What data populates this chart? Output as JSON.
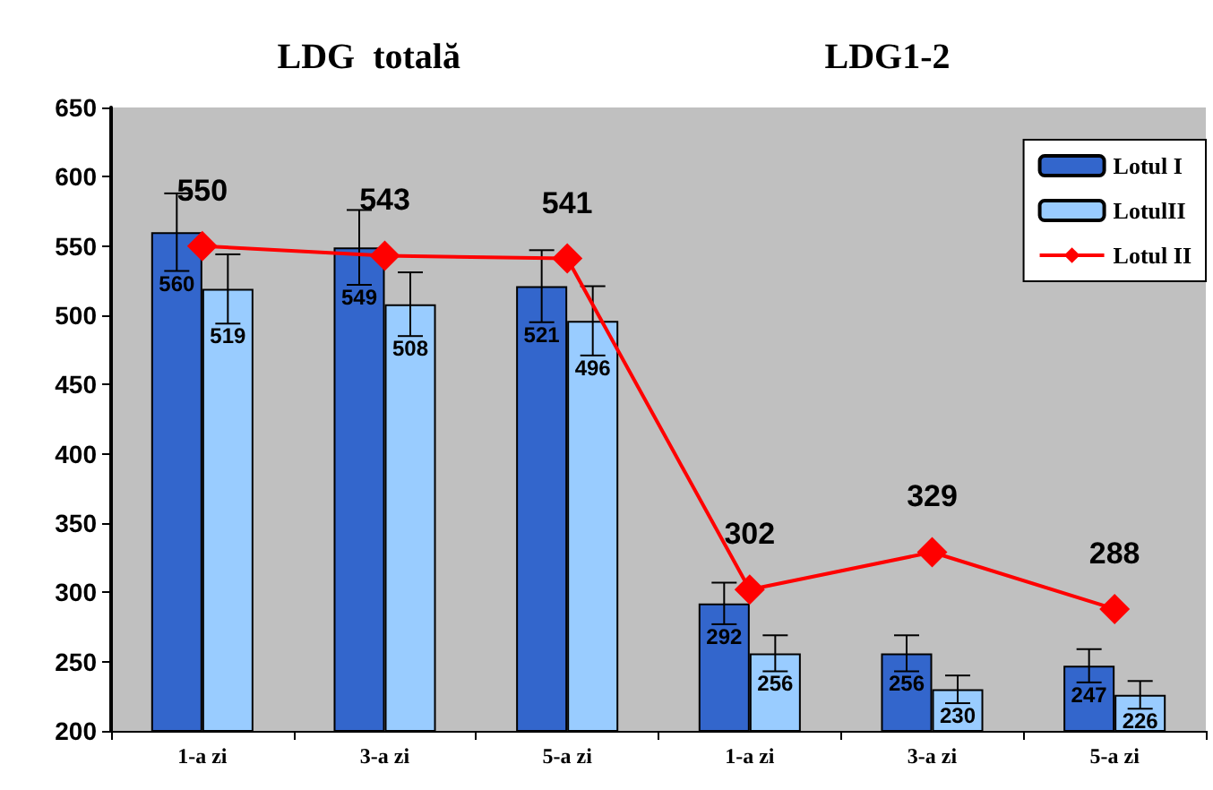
{
  "chart_data": {
    "type": "bar",
    "categories": [
      "1-a zi",
      "3-a zi",
      "5-a zi",
      "1-a zi",
      "3-a zi",
      "5-a zi"
    ],
    "series": [
      {
        "name": "Lotul I",
        "color": "#3366cc",
        "values": [
          560,
          549,
          521,
          292,
          256,
          247
        ],
        "errors": [
          28,
          27,
          26,
          15,
          13,
          12
        ]
      },
      {
        "name": "LotulII",
        "color": "#99ccff",
        "values": [
          519,
          508,
          496,
          256,
          230,
          226
        ],
        "errors": [
          25,
          23,
          25,
          13,
          10,
          10
        ]
      },
      {
        "name": "Lotul II",
        "type": "line",
        "color": "#ff0000",
        "marker": "diamond",
        "values": [
          550,
          543,
          541,
          302,
          329,
          288
        ]
      }
    ],
    "annotations": [
      "LDG  totală",
      "LDG1-2"
    ],
    "ylim": [
      200,
      650
    ],
    "yticks": [
      200,
      250,
      300,
      350,
      400,
      450,
      500,
      550,
      600,
      650
    ],
    "data_labels": true,
    "legend": "top right",
    "grid": false
  }
}
